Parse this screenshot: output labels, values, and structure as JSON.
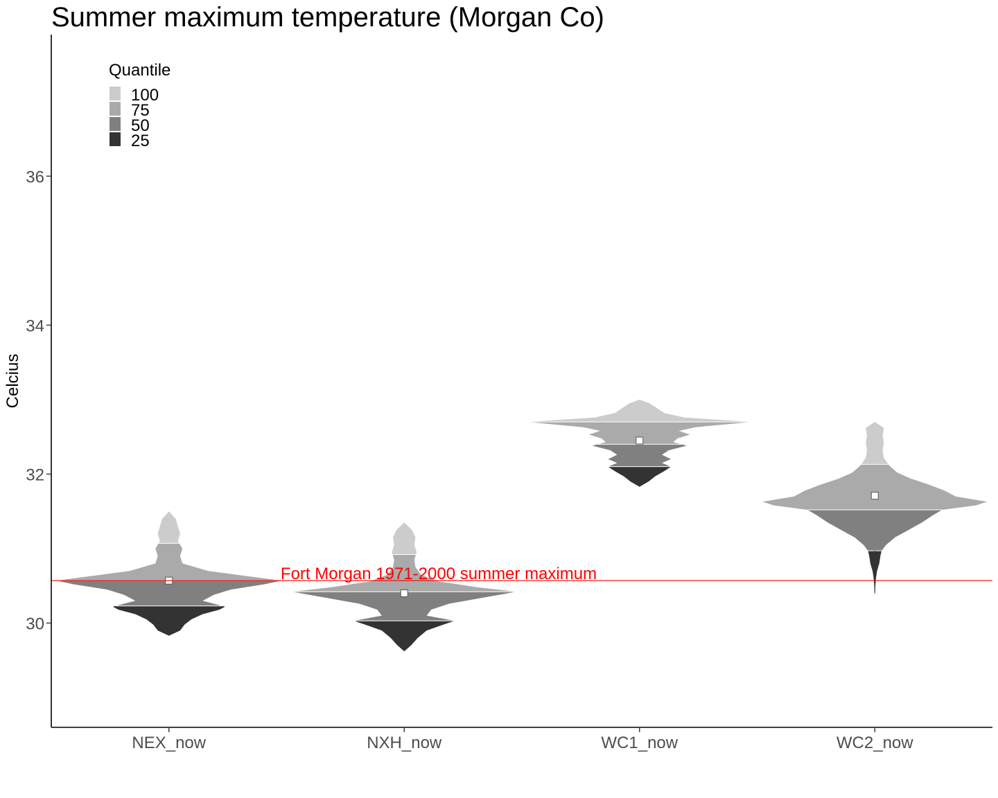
{
  "chart_data": {
    "type": "violin",
    "title": "Summer maximum temperature (Morgan Co)",
    "xlabel": "",
    "ylabel": "Celcius",
    "ylim": [
      28.6,
      37.9
    ],
    "yticks": [
      30,
      32,
      34,
      36
    ],
    "categories": [
      "NEX_now",
      "NXH_now",
      "WC1_now",
      "WC2_now"
    ],
    "legend": {
      "title": "Quantile",
      "position": "top-left",
      "items": [
        {
          "label": "100",
          "color": "#cccccc"
        },
        {
          "label": "75",
          "color": "#aaaaaa"
        },
        {
          "label": "50",
          "color": "#808080"
        },
        {
          "label": "25",
          "color": "#333333"
        }
      ]
    },
    "reference_line": {
      "value": 30.57,
      "label": "Fort Morgan 1971-2000 summer maximum",
      "color": "#ff0000"
    },
    "series": [
      {
        "category": "NEX_now",
        "min": 29.83,
        "q25": 30.23,
        "median": 30.57,
        "q75": 31.07,
        "max": 31.5,
        "mean": 30.57,
        "profile": [
          [
            29.83,
            0.0
          ],
          [
            29.9,
            0.1
          ],
          [
            29.98,
            0.14
          ],
          [
            30.05,
            0.2
          ],
          [
            30.12,
            0.3
          ],
          [
            30.18,
            0.45
          ],
          [
            30.22,
            0.5
          ],
          [
            30.3,
            0.3
          ],
          [
            30.38,
            0.4
          ],
          [
            30.45,
            0.55
          ],
          [
            30.52,
            0.85
          ],
          [
            30.57,
            1.0
          ],
          [
            30.63,
            0.7
          ],
          [
            30.7,
            0.35
          ],
          [
            30.8,
            0.12
          ],
          [
            30.9,
            0.1
          ],
          [
            31.0,
            0.12
          ],
          [
            31.1,
            0.08
          ],
          [
            31.2,
            0.1
          ],
          [
            31.3,
            0.08
          ],
          [
            31.4,
            0.06
          ],
          [
            31.5,
            0.0
          ]
        ]
      },
      {
        "category": "NXH_now",
        "min": 29.62,
        "q25": 30.03,
        "median": 30.42,
        "q75": 30.92,
        "max": 31.35,
        "mean": 30.4,
        "profile": [
          [
            29.62,
            0.0
          ],
          [
            29.7,
            0.06
          ],
          [
            29.8,
            0.12
          ],
          [
            29.9,
            0.2
          ],
          [
            29.98,
            0.35
          ],
          [
            30.03,
            0.45
          ],
          [
            30.1,
            0.2
          ],
          [
            30.18,
            0.24
          ],
          [
            30.26,
            0.4
          ],
          [
            30.34,
            0.7
          ],
          [
            30.42,
            1.0
          ],
          [
            30.48,
            0.65
          ],
          [
            30.56,
            0.3
          ],
          [
            30.65,
            0.15
          ],
          [
            30.75,
            0.1
          ],
          [
            30.85,
            0.09
          ],
          [
            30.95,
            0.11
          ],
          [
            31.05,
            0.09
          ],
          [
            31.15,
            0.1
          ],
          [
            31.25,
            0.07
          ],
          [
            31.35,
            0.0
          ]
        ]
      },
      {
        "category": "WC1_now",
        "min": 31.83,
        "q25": 32.1,
        "median": 32.4,
        "q75": 32.7,
        "max": 33.0,
        "mean": 32.45,
        "profile": [
          [
            31.83,
            0.0
          ],
          [
            31.9,
            0.08
          ],
          [
            31.97,
            0.14
          ],
          [
            32.04,
            0.22
          ],
          [
            32.1,
            0.28
          ],
          [
            32.15,
            0.2
          ],
          [
            32.2,
            0.28
          ],
          [
            32.26,
            0.2
          ],
          [
            32.32,
            0.26
          ],
          [
            32.38,
            0.42
          ],
          [
            32.43,
            0.3
          ],
          [
            32.48,
            0.34
          ],
          [
            32.53,
            0.45
          ],
          [
            32.58,
            0.35
          ],
          [
            32.63,
            0.5
          ],
          [
            32.7,
            1.0
          ],
          [
            32.76,
            0.4
          ],
          [
            32.82,
            0.22
          ],
          [
            32.88,
            0.16
          ],
          [
            32.95,
            0.09
          ],
          [
            33.0,
            0.0
          ]
        ]
      },
      {
        "category": "WC2_now",
        "min": 30.4,
        "q25": 30.97,
        "median": 31.52,
        "q75": 32.13,
        "max": 32.7,
        "mean": 31.71,
        "profile": [
          [
            30.4,
            0.0
          ],
          [
            30.6,
            0.01
          ],
          [
            30.7,
            0.02
          ],
          [
            30.8,
            0.04
          ],
          [
            30.9,
            0.05
          ],
          [
            30.97,
            0.06
          ],
          [
            31.05,
            0.1
          ],
          [
            31.15,
            0.18
          ],
          [
            31.25,
            0.3
          ],
          [
            31.35,
            0.42
          ],
          [
            31.45,
            0.52
          ],
          [
            31.52,
            0.6
          ],
          [
            31.58,
            0.9
          ],
          [
            31.63,
            1.0
          ],
          [
            31.7,
            0.72
          ],
          [
            31.78,
            0.62
          ],
          [
            31.86,
            0.48
          ],
          [
            31.94,
            0.32
          ],
          [
            32.02,
            0.2
          ],
          [
            32.1,
            0.14
          ],
          [
            32.13,
            0.12
          ],
          [
            32.22,
            0.08
          ],
          [
            32.32,
            0.07
          ],
          [
            32.42,
            0.08
          ],
          [
            32.52,
            0.07
          ],
          [
            32.62,
            0.08
          ],
          [
            32.7,
            0.0
          ]
        ]
      }
    ]
  }
}
